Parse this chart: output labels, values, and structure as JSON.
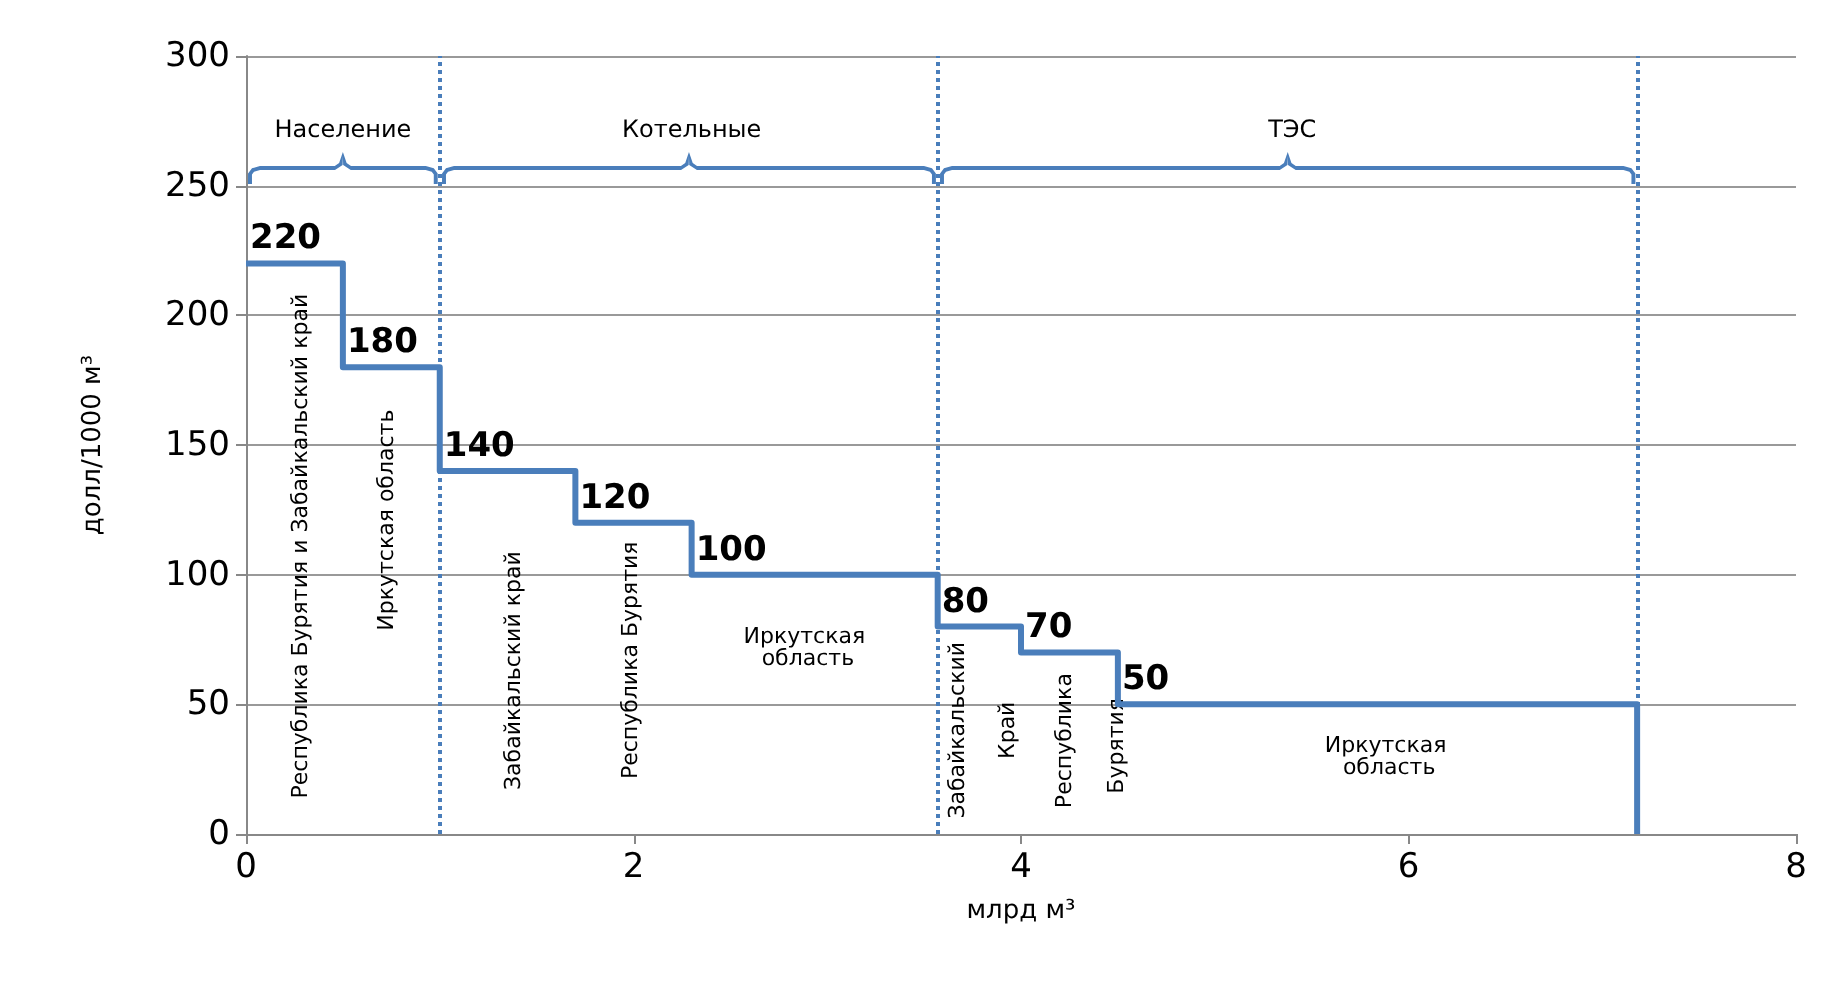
{
  "chart_data": {
    "type": "step",
    "xlabel": "млрд м³",
    "ylabel": "долл/1000 м³",
    "x": [
      0,
      0.5,
      1,
      1.7,
      2.3,
      3.57,
      4,
      4.5,
      7.18
    ],
    "series": [
      {
        "color": "#4a7ebb",
        "values": [
          220,
          180,
          140,
          120,
          100,
          80,
          70,
          50,
          0
        ],
        "value_labels": [
          "220",
          "180",
          "140",
          "120",
          "100",
          "80",
          "70",
          "50",
          null
        ]
      }
    ],
    "xlim": [
      0,
      8
    ],
    "xticks": [
      0,
      2,
      4,
      6,
      8
    ],
    "ylim": [
      0,
      300
    ],
    "yticks": [
      0,
      50,
      100,
      150,
      200,
      250,
      300
    ],
    "grid": "y",
    "ref_lines": [
      {
        "axis": "x",
        "value": 1,
        "color": "#4a7ebb",
        "line_style": "dotted"
      },
      {
        "axis": "x",
        "value": 3.57,
        "color": "#4a7ebb",
        "line_style": "dotted"
      },
      {
        "axis": "x",
        "value": 7.18,
        "color": "#4a7ebb",
        "line_style": "dotted"
      }
    ],
    "annotations": [
      "Население",
      "Котельные",
      "ТЭС",
      "Республика Бурятия и Забайкальский край",
      "Иркутская область",
      "Забайкальский край",
      "Республика Бурятия",
      "Забайкальский",
      "Край",
      "Республика",
      "Бурятия",
      "Иркутская область",
      "Иркутская область"
    ]
  }
}
